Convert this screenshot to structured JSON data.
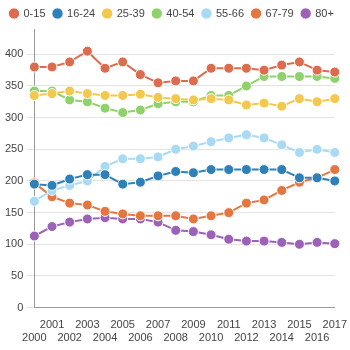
{
  "chart_data": {
    "type": "line",
    "categories": [
      "2000",
      "2001",
      "2002",
      "2003",
      "2004",
      "2005",
      "2006",
      "2007",
      "2008",
      "2009",
      "2010",
      "2011",
      "2012",
      "2013",
      "2014",
      "2015",
      "2016",
      "2017"
    ],
    "series": [
      {
        "name": "0-15",
        "color": "#dd6b4d",
        "values": [
          380,
          380,
          388,
          405,
          378,
          388,
          368,
          355,
          358,
          358,
          378,
          378,
          378,
          375,
          383,
          388,
          375,
          372
        ]
      },
      {
        "name": "16-24",
        "color": "#2e80b8",
        "values": [
          195,
          193,
          203,
          210,
          210,
          195,
          198,
          208,
          215,
          213,
          218,
          218,
          218,
          218,
          218,
          205,
          205,
          200
        ]
      },
      {
        "name": "25-39",
        "color": "#f2c94e",
        "values": [
          335,
          338,
          342,
          338,
          335,
          335,
          337,
          332,
          330,
          328,
          330,
          328,
          320,
          323,
          318,
          330,
          325,
          330
        ]
      },
      {
        "name": "40-54",
        "color": "#8fd16a",
        "values": [
          342,
          342,
          328,
          325,
          315,
          308,
          312,
          322,
          325,
          325,
          335,
          335,
          350,
          365,
          365,
          365,
          365,
          362
        ]
      },
      {
        "name": "55-66",
        "color": "#a9daf3",
        "values": [
          168,
          185,
          193,
          200,
          223,
          235,
          235,
          238,
          250,
          255,
          262,
          268,
          273,
          268,
          257,
          245,
          250,
          245
        ]
      },
      {
        "name": "67-79",
        "color": "#e6763f",
        "values": [
          197,
          175,
          165,
          162,
          152,
          148,
          145,
          145,
          145,
          140,
          145,
          150,
          165,
          170,
          185,
          198,
          205,
          218
        ]
      },
      {
        "name": "80+",
        "color": "#9b62b8",
        "values": [
          113,
          128,
          135,
          140,
          142,
          140,
          140,
          135,
          122,
          120,
          115,
          108,
          105,
          105,
          103,
          100,
          103,
          101
        ]
      }
    ],
    "ylim": [
      0,
      440
    ],
    "yticks": [
      0,
      50,
      100,
      150,
      200,
      250,
      300,
      350,
      400
    ],
    "grid": true,
    "legend": "top",
    "marker": "circle"
  }
}
